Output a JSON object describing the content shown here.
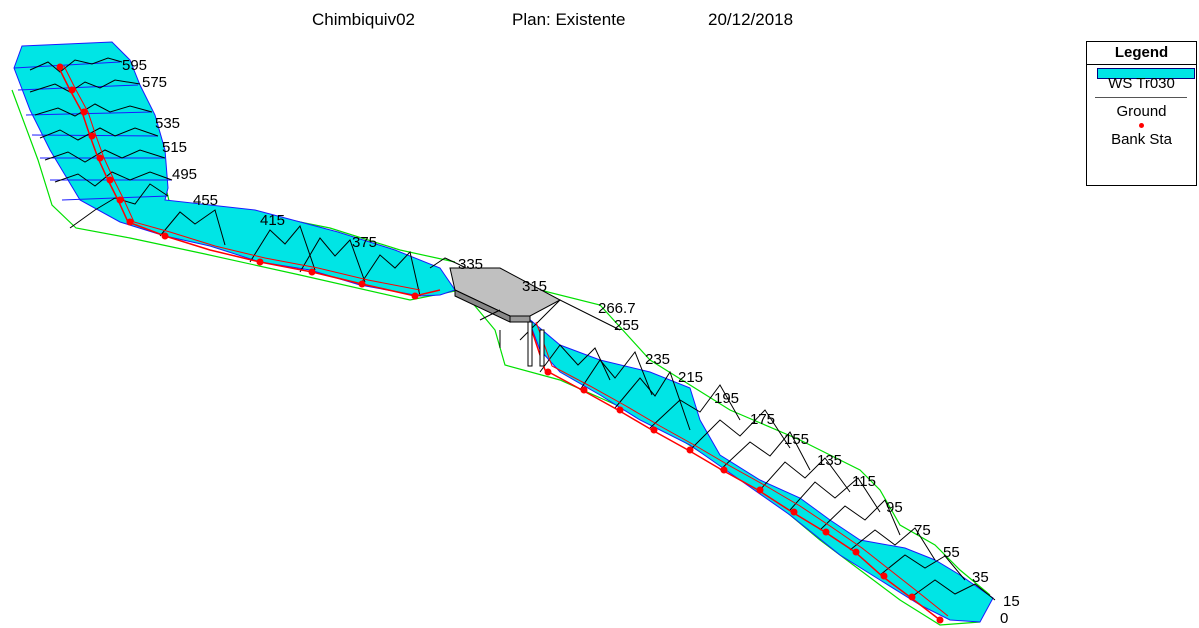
{
  "title": {
    "project": "Chimbiquiv02",
    "plan": "Plan: Existente",
    "date": "20/12/2018"
  },
  "legend": {
    "title": "Legend",
    "items": [
      {
        "label": "WS Tr030",
        "color": "#00e5e5"
      },
      {
        "label": "Ground",
        "color": "#000000"
      },
      {
        "label": "Bank Sta",
        "color": "#ff0000"
      }
    ]
  },
  "stations": [
    "595",
    "575",
    "535",
    "515",
    "495",
    "455",
    "415",
    "375",
    "335",
    "315",
    "266.7",
    "255",
    "235",
    "215",
    "195",
    "175",
    "155",
    "135",
    "115",
    "95",
    "75",
    "55",
    "35",
    "15",
    "0"
  ],
  "colors": {
    "water": "#00e5e5",
    "water_edge": "#1a1aff",
    "ground": "#000000",
    "bank": "#ff0000",
    "overbank": "#00e000",
    "bridge": "#c0c0c0"
  }
}
